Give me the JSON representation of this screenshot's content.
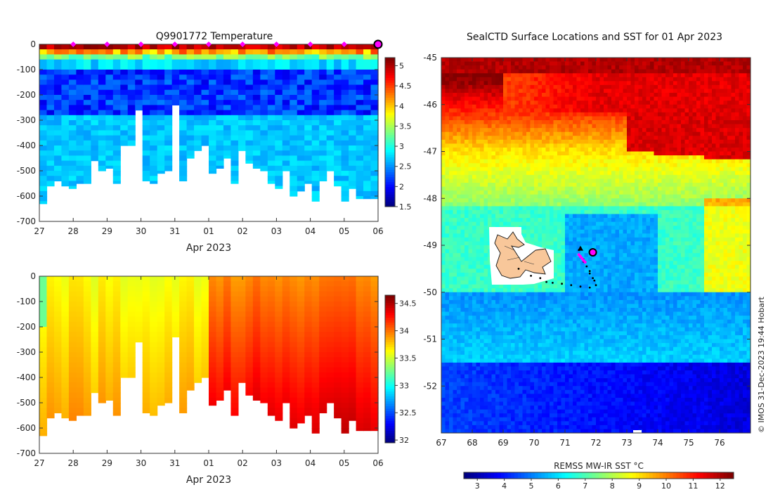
{
  "chart_data": [
    {
      "type": "heatmap",
      "title": "Q9901772  Temperature",
      "xlabel": "Apr 2023",
      "ylabel": "",
      "x_tick_labels": [
        "27",
        "28",
        "29",
        "30",
        "31",
        "01",
        "02",
        "03",
        "04",
        "05",
        "06"
      ],
      "y_tick_labels": [
        "0",
        "-100",
        "-200",
        "-300",
        "-400",
        "-500",
        "-600",
        "-700"
      ],
      "ylim": [
        -700,
        0
      ],
      "colorbar_ticks": [
        "1.5",
        "2",
        "2.5",
        "3",
        "3.5",
        "4",
        "4.5",
        "5"
      ],
      "colorbar_range": [
        1.5,
        5.2
      ],
      "surface_markers": "magenta diamonds along 0 m at each day",
      "profiles_max_depth": [
        -630,
        -560,
        -540,
        -560,
        -570,
        -550,
        -550,
        -460,
        -500,
        -490,
        -550,
        -400,
        -400,
        -260,
        -540,
        -550,
        -510,
        -500,
        -240,
        -540,
        -450,
        -420,
        -400,
        -510,
        -490,
        -450,
        -550,
        -420,
        -470,
        -490,
        -500,
        -550,
        -570,
        -500,
        -600,
        -580,
        -550,
        -620,
        -540,
        -500,
        -560,
        -620,
        -570,
        -610,
        -610,
        -610
      ]
    },
    {
      "type": "heatmap",
      "title": "",
      "xlabel": "Apr 2023",
      "ylabel": "",
      "x_tick_labels": [
        "27",
        "28",
        "29",
        "30",
        "31",
        "01",
        "02",
        "03",
        "04",
        "05",
        "06"
      ],
      "y_tick_labels": [
        "0",
        "-100",
        "-200",
        "-300",
        "-400",
        "-500",
        "-600",
        "-700"
      ],
      "ylim": [
        -700,
        0
      ],
      "colorbar_ticks": [
        "32",
        "32.5",
        "33",
        "33.5",
        "34",
        "34.5"
      ],
      "colorbar_range": [
        31.95,
        34.65
      ]
    },
    {
      "type": "heatmap",
      "title": "SealCTD Surface Locations and SST for 01 Apr 2023",
      "x_tick_labels": [
        "67",
        "68",
        "69",
        "70",
        "71",
        "72",
        "73",
        "74",
        "75",
        "76"
      ],
      "y_tick_labels": [
        "-45",
        "-46",
        "-47",
        "-48",
        "-49",
        "-50",
        "-51",
        "-52"
      ],
      "xlim": [
        67,
        77
      ],
      "ylim": [
        -53,
        -45
      ],
      "colorbar_label": "REMSS MW-IR SST °C",
      "colorbar_ticks": [
        "3",
        "4",
        "5",
        "6",
        "7",
        "8",
        "9",
        "10",
        "11",
        "12"
      ],
      "colorbar_range": [
        2.5,
        12.5
      ],
      "track_end": [
        71.9,
        -49.15
      ],
      "track_start": [
        72.0,
        -49.8
      ],
      "island": "Kerguelen Islands"
    }
  ],
  "credit": "© IMOS 31-Dec-2023 19:44 Hobart",
  "colors": {
    "jet_min": "#00007f",
    "jet_max": "#7f0000",
    "magenta": "#ff00ff",
    "island": "#f8c79a"
  }
}
